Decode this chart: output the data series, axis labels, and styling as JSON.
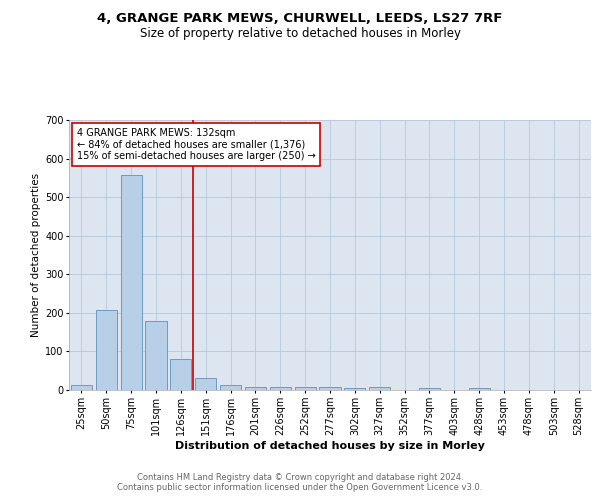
{
  "title1": "4, GRANGE PARK MEWS, CHURWELL, LEEDS, LS27 7RF",
  "title2": "Size of property relative to detached houses in Morley",
  "xlabel": "Distribution of detached houses by size in Morley",
  "ylabel": "Number of detached properties",
  "categories": [
    "25sqm",
    "50sqm",
    "75sqm",
    "101sqm",
    "126sqm",
    "151sqm",
    "176sqm",
    "201sqm",
    "226sqm",
    "252sqm",
    "277sqm",
    "302sqm",
    "327sqm",
    "352sqm",
    "377sqm",
    "403sqm",
    "428sqm",
    "453sqm",
    "478sqm",
    "503sqm",
    "528sqm"
  ],
  "values": [
    12,
    207,
    557,
    180,
    80,
    30,
    12,
    8,
    8,
    8,
    7,
    6,
    7,
    0,
    6,
    0,
    6,
    0,
    0,
    0,
    0
  ],
  "bar_color": "#b8cfe8",
  "bar_edge_color": "#6090c0",
  "vline_color": "#cc0000",
  "annotation_text": "4 GRANGE PARK MEWS: 132sqm\n← 84% of detached houses are smaller (1,376)\n15% of semi-detached houses are larger (250) →",
  "annotation_box_color": "#ffffff",
  "annotation_box_edge": "#cc0000",
  "ylim": [
    0,
    700
  ],
  "yticks": [
    0,
    100,
    200,
    300,
    400,
    500,
    600,
    700
  ],
  "bg_color": "#dde5f0",
  "footer": "Contains HM Land Registry data © Crown copyright and database right 2024.\nContains public sector information licensed under the Open Government Licence v3.0.",
  "title1_fontsize": 9.5,
  "title2_fontsize": 8.5,
  "xlabel_fontsize": 8,
  "ylabel_fontsize": 7.5,
  "tick_fontsize": 7,
  "annot_fontsize": 7
}
